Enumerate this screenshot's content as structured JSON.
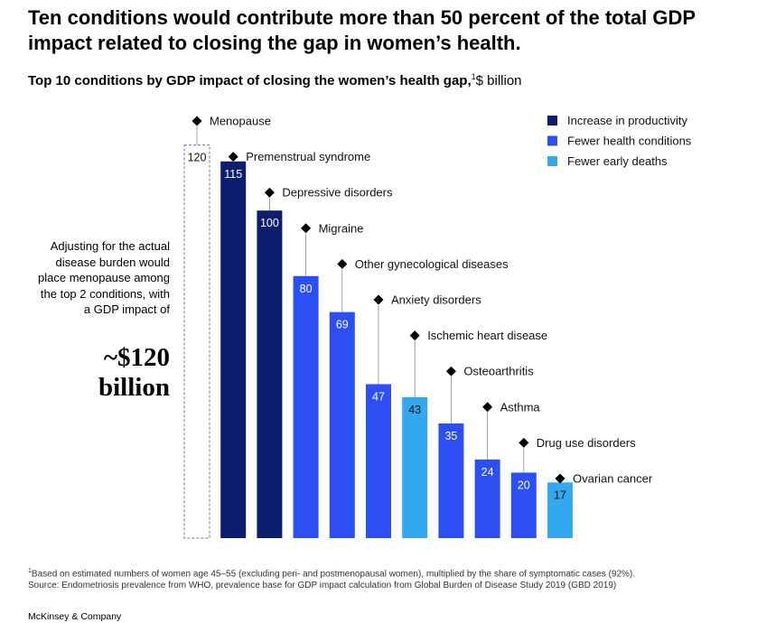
{
  "headline": "Ten conditions would contribute more than 50 percent of the total GDP impact related to closing the gap in women’s health.",
  "side_note": {
    "text": "Adjusting for the actual disease burden would place menopause among the top 2 conditions, with a GDP impact of",
    "figure": "~$120 billion"
  },
  "footnote": {
    "marker": "1",
    "line1": "Based on estimated numbers of women age 45–55 (excluding peri- and postmenopausal women), multiplied by the share of symptomatic cases (92%).",
    "line2": "Source: Endometriosis prevalence from WHO, prevalence base for GDP impact calculation from Global Burden of Disease Study 2019 (GBD 2019)"
  },
  "brand": "McKinsey & Company",
  "chart_data": {
    "type": "bar",
    "title": "Top 10 conditions by GDP impact of closing the women’s health gap,",
    "title_marker": "1",
    "unit": "$ billion",
    "ylim": [
      0,
      132
    ],
    "categories": [
      "Menopause",
      "Premenstrual syndrome",
      "Depressive disorders",
      "Migraine",
      "Other gynecological diseases",
      "Anxiety disorders",
      "Ischemic heart disease",
      "Osteoarthritis",
      "Asthma",
      "Drug use disorders",
      "Ovarian cancer"
    ],
    "values": [
      120,
      115,
      100,
      80,
      69,
      47,
      43,
      35,
      24,
      20,
      17
    ],
    "value_labels": [
      "120",
      "115",
      "100",
      "80",
      "69",
      "47",
      "43",
      "35",
      "24",
      "20",
      "17"
    ],
    "bar_type": [
      "Adjusted estimate",
      "Increase in productivity",
      "Increase in productivity",
      "Fewer health conditions",
      "Fewer health conditions",
      "Fewer health conditions",
      "Fewer early deaths",
      "Fewer health conditions",
      "Fewer health conditions",
      "Fewer health conditions",
      "Fewer early deaths"
    ],
    "legend": [
      {
        "name": "Increase in productivity",
        "color": "#0d1e6f"
      },
      {
        "name": "Fewer health conditions",
        "color": "#2b4ff2"
      },
      {
        "name": "Fewer early deaths",
        "color": "#33a8ee"
      }
    ],
    "adjusted_color": "#6b73a8",
    "legend_position": "top-right"
  }
}
